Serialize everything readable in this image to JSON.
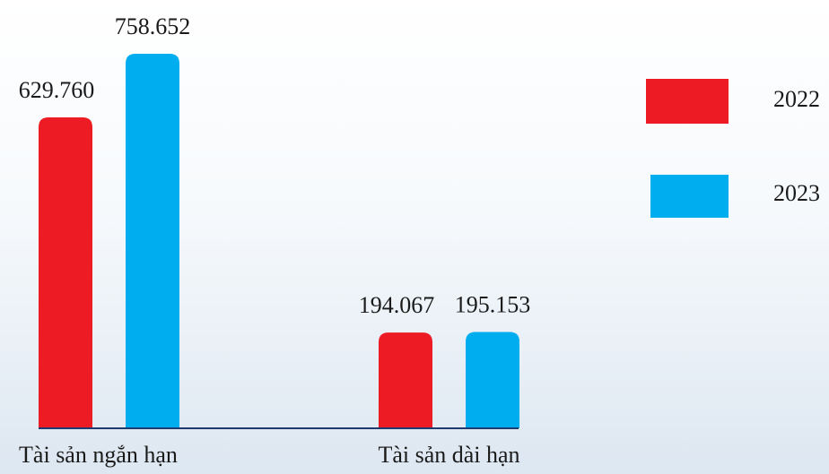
{
  "chart_data": {
    "type": "bar",
    "categories": [
      "Tài sản ngắn hạn",
      "Tài sản dài hạn"
    ],
    "series": [
      {
        "name": "2022",
        "color": "#ed1c24",
        "values": [
          629760,
          194067
        ],
        "value_labels": [
          "629.760",
          "194.067"
        ]
      },
      {
        "name": "2023",
        "color": "#00aeef",
        "values": [
          758652,
          195153
        ],
        "value_labels": [
          "758.652",
          "195.153"
        ]
      }
    ],
    "legend": "right"
  }
}
